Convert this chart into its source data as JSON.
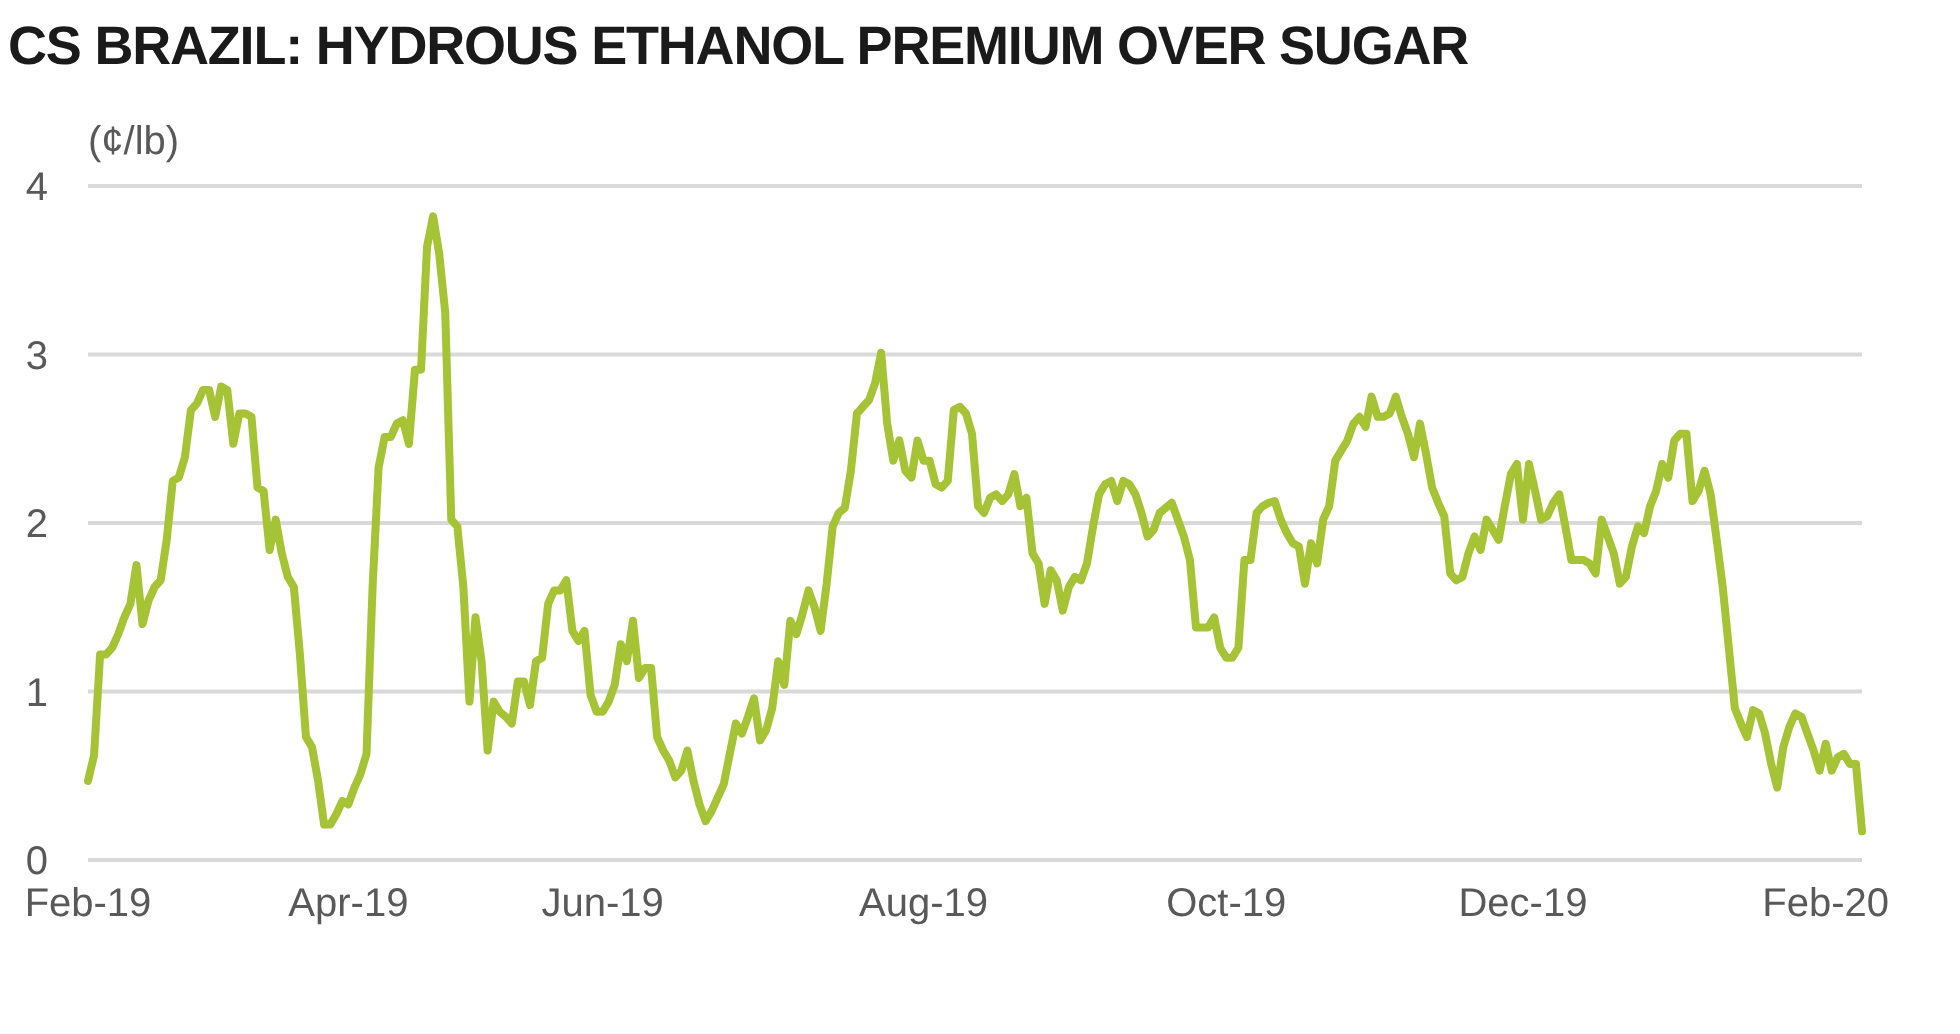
{
  "chart_data": {
    "type": "line",
    "title": "CS BRAZIL: HYDROUS ETHANOL PREMIUM OVER SUGAR",
    "ylabel": "(¢/lb)",
    "categories": [
      "Feb-19",
      null,
      null,
      null,
      null,
      null,
      null,
      null,
      null,
      null,
      null,
      null,
      null,
      null,
      null,
      null,
      null,
      null,
      null,
      null,
      null,
      null,
      null,
      null,
      null,
      null,
      null,
      null,
      null,
      null,
      null,
      null,
      null,
      null,
      null,
      null,
      null,
      null,
      null,
      null,
      null,
      null,
      null,
      "Apr-19",
      null,
      null,
      null,
      null,
      null,
      null,
      null,
      null,
      null,
      null,
      null,
      null,
      null,
      null,
      null,
      null,
      null,
      null,
      null,
      null,
      null,
      null,
      null,
      null,
      null,
      null,
      null,
      null,
      null,
      null,
      null,
      null,
      null,
      null,
      null,
      null,
      null,
      null,
      null,
      null,
      null,
      "Jun-19",
      null,
      null,
      null,
      null,
      null,
      null,
      null,
      null,
      null,
      null,
      null,
      null,
      null,
      null,
      null,
      null,
      null,
      null,
      null,
      null,
      null,
      null,
      null,
      null,
      null,
      null,
      null,
      null,
      null,
      null,
      null,
      null,
      null,
      null,
      null,
      null,
      null,
      null,
      null,
      null,
      null,
      null,
      null,
      null,
      null,
      null,
      null,
      null,
      null,
      null,
      null,
      null,
      "Aug-19",
      null,
      null,
      null,
      null,
      null,
      null,
      null,
      null,
      null,
      null,
      null,
      null,
      null,
      null,
      null,
      null,
      null,
      null,
      null,
      null,
      null,
      null,
      null,
      null,
      null,
      null,
      null,
      null,
      null,
      null,
      null,
      null,
      null,
      null,
      null,
      null,
      null,
      null,
      null,
      null,
      null,
      null,
      null,
      null,
      null,
      null,
      null,
      null,
      null,
      "Oct-19",
      null,
      null,
      null,
      null,
      null,
      null,
      null,
      null,
      null,
      null,
      null,
      null,
      null,
      null,
      null,
      null,
      null,
      null,
      null,
      null,
      null,
      null,
      null,
      null,
      null,
      null,
      null,
      null,
      null,
      null,
      null,
      null,
      null,
      null,
      null,
      null,
      null,
      null,
      null,
      null,
      null,
      null,
      null,
      null,
      null,
      null,
      null,
      null,
      "Dec-19",
      null,
      null,
      null,
      null,
      null,
      null,
      null,
      null,
      null,
      null,
      null,
      null,
      null,
      null,
      null,
      null,
      null,
      null,
      null,
      null,
      null,
      null,
      null,
      null,
      null,
      null,
      null,
      null,
      null,
      null,
      null,
      null,
      null,
      null,
      null,
      null,
      null,
      null,
      null,
      null,
      null,
      null,
      null,
      null,
      null,
      null,
      null,
      null,
      null,
      "Feb-20",
      null,
      null,
      null,
      null,
      null,
      null
    ],
    "series": [
      {
        "color": "#a5c334",
        "values": [
          0.47,
          0.62,
          1.22,
          1.22,
          1.26,
          1.34,
          1.44,
          1.52,
          1.75,
          1.4,
          1.54,
          1.62,
          1.66,
          1.9,
          2.25,
          2.27,
          2.39,
          2.67,
          2.71,
          2.79,
          2.79,
          2.63,
          2.81,
          2.79,
          2.47,
          2.65,
          2.65,
          2.63,
          2.21,
          2.19,
          1.84,
          2.02,
          1.82,
          1.68,
          1.62,
          1.22,
          0.73,
          0.67,
          0.47,
          0.21,
          0.21,
          0.27,
          0.35,
          0.33,
          0.43,
          0.51,
          0.63,
          1.62,
          2.33,
          2.51,
          2.51,
          2.59,
          2.61,
          2.47,
          2.91,
          2.91,
          3.64,
          3.82,
          3.6,
          3.25,
          2.02,
          1.98,
          1.62,
          0.94,
          1.44,
          1.18,
          0.65,
          0.94,
          0.88,
          0.85,
          0.81,
          1.06,
          1.06,
          0.92,
          1.18,
          1.2,
          1.52,
          1.6,
          1.6,
          1.66,
          1.36,
          1.3,
          1.36,
          0.98,
          0.88,
          0.88,
          0.94,
          1.04,
          1.28,
          1.18,
          1.42,
          1.08,
          1.14,
          1.14,
          0.73,
          0.65,
          0.59,
          0.49,
          0.53,
          0.65,
          0.47,
          0.33,
          0.23,
          0.29,
          0.37,
          0.45,
          0.63,
          0.81,
          0.75,
          0.85,
          0.96,
          0.71,
          0.77,
          0.9,
          1.18,
          1.04,
          1.42,
          1.34,
          1.46,
          1.6,
          1.5,
          1.36,
          1.64,
          1.98,
          2.06,
          2.09,
          2.31,
          2.65,
          2.69,
          2.73,
          2.83,
          3.01,
          2.59,
          2.37,
          2.49,
          2.31,
          2.27,
          2.49,
          2.37,
          2.37,
          2.23,
          2.21,
          2.25,
          2.67,
          2.69,
          2.65,
          2.53,
          2.1,
          2.06,
          2.15,
          2.17,
          2.13,
          2.17,
          2.29,
          2.1,
          2.15,
          1.82,
          1.76,
          1.52,
          1.72,
          1.66,
          1.48,
          1.62,
          1.68,
          1.66,
          1.76,
          1.98,
          2.17,
          2.23,
          2.25,
          2.13,
          2.25,
          2.23,
          2.17,
          2.06,
          1.92,
          1.96,
          2.06,
          2.09,
          2.12,
          2.02,
          1.92,
          1.78,
          1.38,
          1.38,
          1.38,
          1.44,
          1.26,
          1.2,
          1.2,
          1.26,
          1.78,
          1.78,
          2.06,
          2.1,
          2.12,
          2.13,
          2.02,
          1.94,
          1.88,
          1.86,
          1.64,
          1.88,
          1.76,
          2.02,
          2.1,
          2.37,
          2.43,
          2.49,
          2.59,
          2.63,
          2.57,
          2.75,
          2.63,
          2.63,
          2.65,
          2.75,
          2.63,
          2.53,
          2.39,
          2.59,
          2.41,
          2.21,
          2.12,
          2.04,
          1.7,
          1.66,
          1.68,
          1.82,
          1.92,
          1.84,
          2.02,
          1.96,
          1.9,
          2.1,
          2.29,
          2.35,
          2.02,
          2.35,
          2.19,
          2.02,
          2.04,
          2.12,
          2.17,
          1.98,
          1.78,
          1.78,
          1.78,
          1.76,
          1.7,
          2.02,
          1.92,
          1.82,
          1.64,
          1.68,
          1.86,
          1.98,
          1.94,
          2.1,
          2.19,
          2.35,
          2.27,
          2.49,
          2.53,
          2.53,
          2.13,
          2.19,
          2.31,
          2.17,
          1.9,
          1.62,
          1.26,
          0.9,
          0.81,
          0.73,
          0.89,
          0.87,
          0.75,
          0.57,
          0.43,
          0.67,
          0.79,
          0.87,
          0.85,
          0.75,
          0.65,
          0.53,
          0.69,
          0.53,
          0.61,
          0.63,
          0.57,
          0.57,
          0.17
        ]
      }
    ],
    "ylim": [
      0,
      4
    ],
    "yticks": [
      0,
      1,
      2,
      3,
      4
    ],
    "grid": "y"
  }
}
